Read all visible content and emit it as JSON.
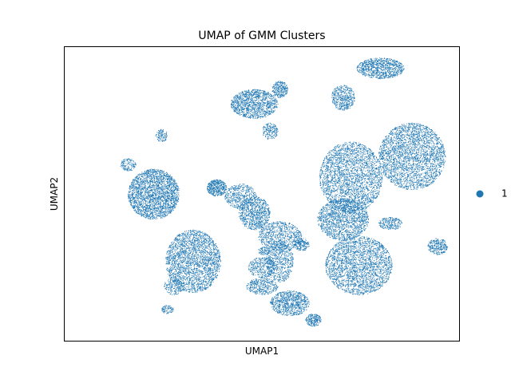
{
  "chart_data": {
    "type": "scatter",
    "title": "UMAP of GMM Clusters",
    "xlabel": "UMAP1",
    "ylabel": "UMAP2",
    "x_ticks": [],
    "y_ticks": [],
    "grid": false,
    "legend_position": "right",
    "series": [
      {
        "name": "1",
        "color": "#1f77b4",
        "clusters": [
          {
            "cx": 4.5,
            "cy": 7.0,
            "rx": 1.3,
            "ry": 1.2,
            "n": 2600
          },
          {
            "cx": 6.5,
            "cy": 3.8,
            "rx": 1.4,
            "ry": 1.5,
            "n": 2600
          },
          {
            "cx": 14.5,
            "cy": 7.8,
            "rx": 1.6,
            "ry": 1.7,
            "n": 2800
          },
          {
            "cx": 17.6,
            "cy": 8.8,
            "rx": 1.7,
            "ry": 1.6,
            "n": 3000
          },
          {
            "cx": 14.9,
            "cy": 3.6,
            "rx": 1.7,
            "ry": 1.4,
            "n": 2600
          },
          {
            "cx": 14.1,
            "cy": 5.8,
            "rx": 1.3,
            "ry": 1.0,
            "n": 1600
          },
          {
            "cx": 9.6,
            "cy": 11.3,
            "rx": 1.2,
            "ry": 0.7,
            "n": 1300
          },
          {
            "cx": 9.6,
            "cy": 6.1,
            "rx": 0.8,
            "ry": 0.8,
            "n": 900
          },
          {
            "cx": 16.0,
            "cy": 13.0,
            "rx": 1.2,
            "ry": 0.5,
            "n": 1000
          },
          {
            "cx": 11.4,
            "cy": 1.8,
            "rx": 1.0,
            "ry": 0.6,
            "n": 900
          },
          {
            "cx": 10.9,
            "cy": 5.0,
            "rx": 1.1,
            "ry": 0.7,
            "n": 800
          },
          {
            "cx": 10.9,
            "cy": 3.8,
            "rx": 0.7,
            "ry": 1.0,
            "n": 700
          },
          {
            "cx": 7.7,
            "cy": 7.3,
            "rx": 0.5,
            "ry": 0.4,
            "n": 500
          },
          {
            "cx": 8.9,
            "cy": 6.9,
            "rx": 0.8,
            "ry": 0.6,
            "n": 500
          },
          {
            "cx": 14.1,
            "cy": 11.6,
            "rx": 0.6,
            "ry": 0.6,
            "n": 500
          },
          {
            "cx": 10.9,
            "cy": 12.0,
            "rx": 0.4,
            "ry": 0.4,
            "n": 300
          },
          {
            "cx": 10.0,
            "cy": 3.5,
            "rx": 0.7,
            "ry": 0.5,
            "n": 400
          },
          {
            "cx": 10.0,
            "cy": 2.6,
            "rx": 0.8,
            "ry": 0.4,
            "n": 400
          },
          {
            "cx": 18.9,
            "cy": 4.5,
            "rx": 0.5,
            "ry": 0.4,
            "n": 300
          },
          {
            "cx": 12.6,
            "cy": 1.0,
            "rx": 0.4,
            "ry": 0.3,
            "n": 250
          },
          {
            "cx": 16.5,
            "cy": 5.6,
            "rx": 0.6,
            "ry": 0.3,
            "n": 250
          },
          {
            "cx": 12.0,
            "cy": 4.6,
            "rx": 0.4,
            "ry": 0.3,
            "n": 200
          },
          {
            "cx": 5.5,
            "cy": 2.6,
            "rx": 0.5,
            "ry": 0.4,
            "n": 200
          },
          {
            "cx": 3.2,
            "cy": 8.4,
            "rx": 0.4,
            "ry": 0.3,
            "n": 150
          },
          {
            "cx": 4.9,
            "cy": 9.8,
            "rx": 0.3,
            "ry": 0.3,
            "n": 120
          },
          {
            "cx": 5.2,
            "cy": 1.5,
            "rx": 0.3,
            "ry": 0.2,
            "n": 100
          },
          {
            "cx": 10.1,
            "cy": 4.3,
            "rx": 0.3,
            "ry": 0.2,
            "n": 100
          },
          {
            "cx": 10.4,
            "cy": 10.0,
            "rx": 0.4,
            "ry": 0.4,
            "n": 200
          }
        ]
      }
    ],
    "xlim": [
      0,
      20
    ],
    "ylim": [
      0,
      14
    ]
  }
}
